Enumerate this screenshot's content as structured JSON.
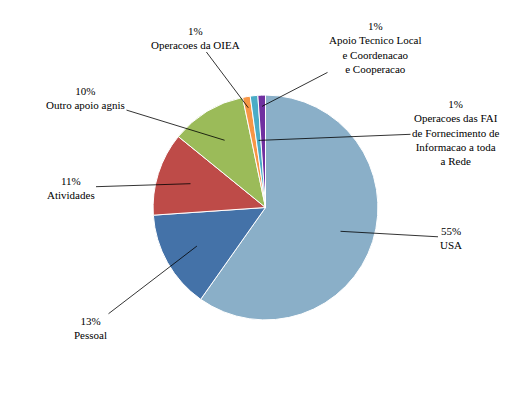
{
  "chart_data": {
    "type": "pie",
    "categories": [
      "55%\nUSA",
      "13%\nPessoal",
      "11%\nAtividades",
      "10%\nOutro apoio agnis",
      "1%\nOperacoes da OIEA",
      "1%\nOperacoes das FAI\nde Fornecimento de\nInformacao a toda\na Rede",
      "1%\nApoio Tecnico Local\ne Coordenacao\ne Cooperacao"
    ],
    "values": [
      55,
      13,
      11,
      10,
      1,
      1,
      1
    ],
    "colors": [
      "#8aafc8",
      "#4472a8",
      "#be4b48",
      "#9bbb59",
      "#f79646",
      "#4bacc6",
      "#7030a0"
    ]
  }
}
